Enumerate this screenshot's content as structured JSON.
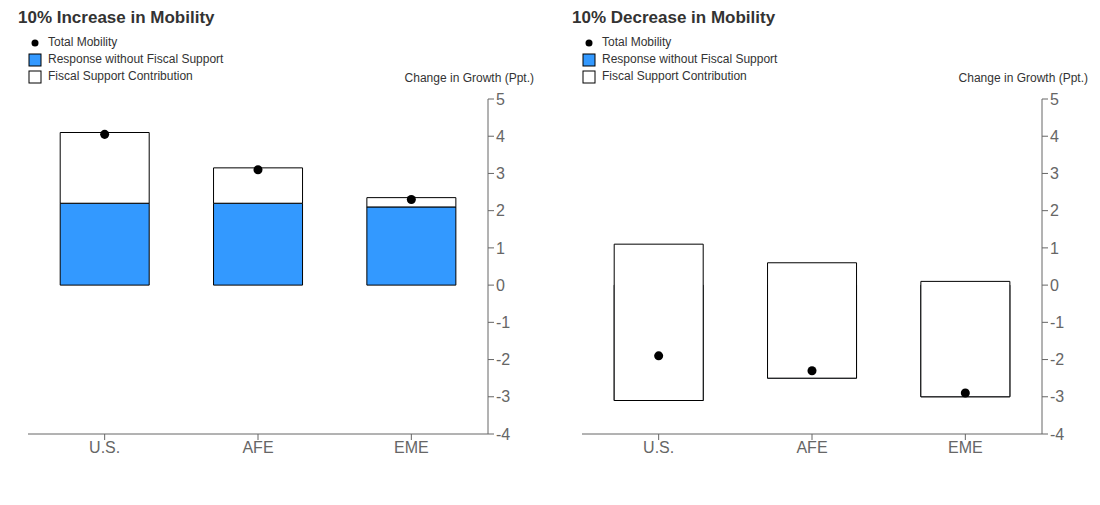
{
  "chart_data": [
    {
      "type": "bar",
      "title": "10% Increase in Mobility",
      "y_label": "Change in Growth (Ppt.)",
      "categories": [
        "U.S.",
        "AFE",
        "EME"
      ],
      "series": [
        {
          "name": "Total Mobility",
          "type": "scatter",
          "color": "#000000",
          "marker": "circle",
          "values": [
            4.05,
            3.1,
            2.3
          ]
        },
        {
          "name": "Response without Fiscal Support",
          "type": "bar",
          "color": "#3399FF",
          "values": [
            2.2,
            2.2,
            2.1
          ]
        },
        {
          "name": "Fiscal Support Contribution",
          "type": "bar",
          "color": "#FFFFFF",
          "values": [
            1.9,
            0.95,
            0.25
          ]
        }
      ],
      "stacked": true,
      "legend": "upper left",
      "grid": false,
      "ylim": [
        -4,
        5
      ],
      "yticks": [
        -4,
        -3,
        -2,
        -1,
        0,
        1,
        2,
        3,
        4,
        5
      ]
    },
    {
      "type": "bar",
      "title": "10% Decrease in Mobility",
      "y_label": "Change in Growth (Ppt.)",
      "categories": [
        "U.S.",
        "AFE",
        "EME"
      ],
      "series": [
        {
          "name": "Total Mobility",
          "type": "scatter",
          "color": "#000000",
          "marker": "circle",
          "values": [
            -1.9,
            -2.3,
            -2.9
          ]
        },
        {
          "name": "Response without Fiscal Support",
          "type": "bar",
          "color": "#3399FF",
          "values": [
            -3.1,
            -2.5,
            -3.0
          ]
        },
        {
          "name": "Fiscal Support Contribution",
          "type": "bar",
          "color": "#FFFFFF",
          "values": [
            4.2,
            3.1,
            3.1
          ]
        }
      ],
      "stacked": true,
      "legend": "upper left",
      "grid": false,
      "ylim": [
        -4,
        5
      ],
      "yticks": [
        -4,
        -3,
        -2,
        -1,
        0,
        1,
        2,
        3,
        4,
        5
      ]
    }
  ]
}
